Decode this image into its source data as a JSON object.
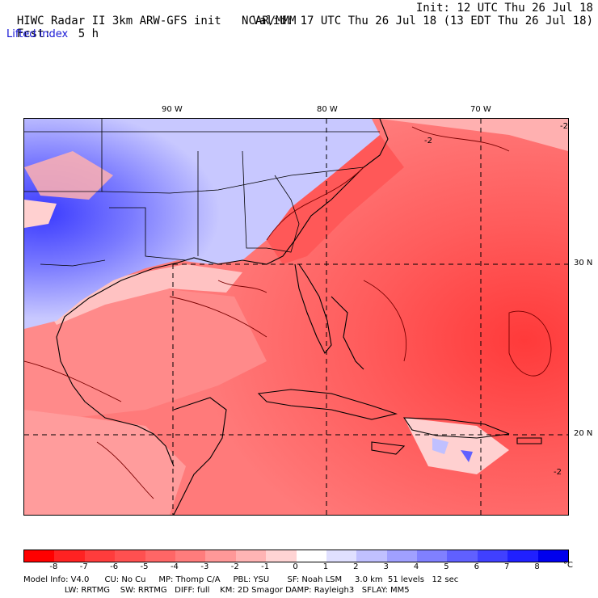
{
  "header": {
    "title": "HIWC Radar II 3km ARW-GFS init",
    "org": "NCAR/MMM",
    "init": "Init: 12 UTC Thu 26 Jul 18",
    "forecast_label": "Fcst:",
    "forecast_value": "5 h",
    "valid": "Valid: 17 UTC Thu 26 Jul 18 (13 EDT Thu 26 Jul 18)",
    "field": "Lifted index"
  },
  "axes": {
    "longitudes": [
      "90 W",
      "80 W",
      "70 W"
    ],
    "latitudes": [
      "30 N",
      "20 N"
    ]
  },
  "colorbar": {
    "tick_labels": [
      "-8",
      "-7",
      "-6",
      "-5",
      "-4",
      "-3",
      "-2",
      "-1",
      "0",
      "1",
      "2",
      "3",
      "4",
      "5",
      "6",
      "7",
      "8"
    ],
    "unit": "°C",
    "colors": [
      "#ff0000",
      "#ff2222",
      "#ff3c3c",
      "#ff5050",
      "#ff6666",
      "#ff7c7c",
      "#ff9898",
      "#ffb4b4",
      "#ffd4d4",
      "#ffffff",
      "#e0e0ff",
      "#c0c0ff",
      "#a0a0ff",
      "#8080ff",
      "#6060ff",
      "#4040ff",
      "#2020ff",
      "#0000ee"
    ]
  },
  "contour_labels": [
    "-2",
    "-2",
    "-2"
  ],
  "footer": {
    "line1": "Model Info: V4.0      CU: No Cu     MP: Thomp C/A     PBL: YSU       SF: Noah LSM     3.0 km  51 levels   12 sec",
    "line2": "                LW: RRTMG    SW: RRTMG   DIFF: full    KM: 2D Smagor DAMP: Rayleigh3   SFLAY: MM5"
  }
}
